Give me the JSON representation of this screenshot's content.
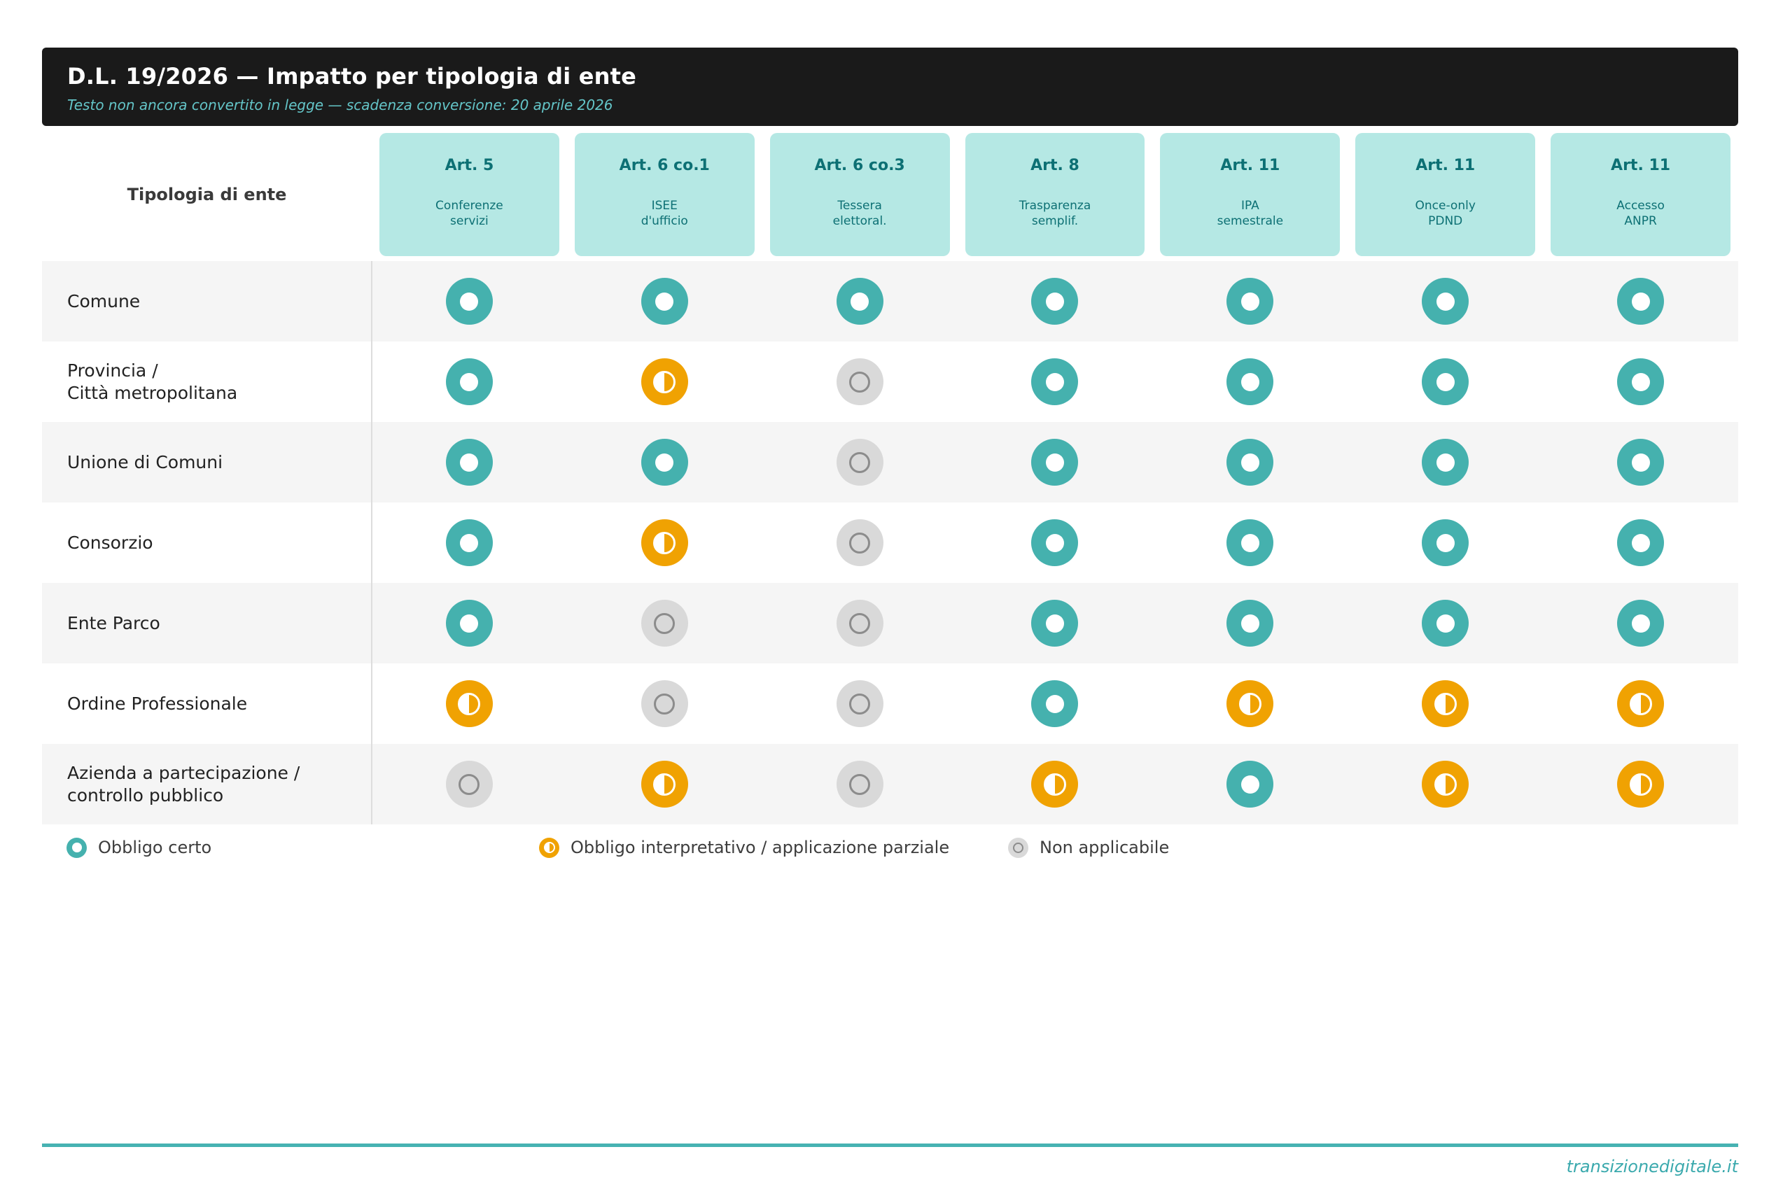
{
  "header": {
    "title": "D.L. 19/2026 — Impatto per tipologia di ente",
    "subtitle": "Testo non ancora convertito in legge — scadenza conversione: 20 aprile 2026"
  },
  "table": {
    "row_header": "Tipologia di ente",
    "columns": [
      {
        "art": "Art. 5",
        "sub": "Conferenze\nservizi"
      },
      {
        "art": "Art. 6 co.1",
        "sub": "ISEE\nd'ufficio"
      },
      {
        "art": "Art. 6 co.3",
        "sub": "Tessera\nelettoral."
      },
      {
        "art": "Art. 8",
        "sub": "Trasparenza\nsemplif."
      },
      {
        "art": "Art. 11",
        "sub": "IPA\nsemestrale"
      },
      {
        "art": "Art. 11",
        "sub": "Once-only\nPDND"
      },
      {
        "art": "Art. 11",
        "sub": "Accesso\nANPR"
      }
    ],
    "rows": [
      {
        "label": "Comune",
        "values": [
          "full",
          "full",
          "full",
          "full",
          "full",
          "full",
          "full"
        ]
      },
      {
        "label": "Provincia /\nCittà metropolitana",
        "values": [
          "full",
          "partial",
          "none",
          "full",
          "full",
          "full",
          "full"
        ]
      },
      {
        "label": "Unione di Comuni",
        "values": [
          "full",
          "full",
          "none",
          "full",
          "full",
          "full",
          "full"
        ]
      },
      {
        "label": "Consorzio",
        "values": [
          "full",
          "partial",
          "none",
          "full",
          "full",
          "full",
          "full"
        ]
      },
      {
        "label": "Ente Parco",
        "values": [
          "full",
          "none",
          "none",
          "full",
          "full",
          "full",
          "full"
        ]
      },
      {
        "label": "Ordine Professionale",
        "values": [
          "partial",
          "none",
          "none",
          "full",
          "partial",
          "partial",
          "partial"
        ]
      },
      {
        "label": "Azienda a partecipazione /\ncontrollo pubblico",
        "values": [
          "none",
          "partial",
          "none",
          "partial",
          "full",
          "partial",
          "partial"
        ]
      }
    ]
  },
  "legend": {
    "items": [
      {
        "type": "full",
        "label": "Obbligo certo"
      },
      {
        "type": "partial",
        "label": "Obbligo interpretativo / applicazione parziale"
      },
      {
        "type": "none",
        "label": "Non applicabile"
      }
    ]
  },
  "footer": {
    "credit": "transizionedigitale.it"
  },
  "colors": {
    "status_full_teal": "#45b1ae",
    "status_partial_orange": "#f0a202",
    "status_none_gray": "#d9d9d9",
    "status_none_ring": "#8c8c8c",
    "banner_bg": "#1a1a1a",
    "banner_subtitle": "#64c5c8",
    "column_header_bg": "#b5e8e4",
    "column_header_text": "#0d7074",
    "row_stripe": "#f5f5f5",
    "footer_rule": "#47b2b2",
    "footer_text": "#3aa9ad"
  },
  "chart_data": {
    "type": "heatmap",
    "title": "D.L. 19/2026 — Impatto per tipologia di ente",
    "subtitle": "Testo non ancora convertito in legge — scadenza conversione: 20 aprile 2026",
    "x_categories": [
      "Art. 5 — Conferenze servizi",
      "Art. 6 co.1 — ISEE d'ufficio",
      "Art. 6 co.3 — Tessera elettoral.",
      "Art. 8 — Trasparenza semplif.",
      "Art. 11 — IPA semestrale",
      "Art. 11 — Once-only PDND",
      "Art. 11 — Accesso ANPR"
    ],
    "y_categories": [
      "Comune",
      "Provincia / Città metropolitana",
      "Unione di Comuni",
      "Consorzio",
      "Ente Parco",
      "Ordine Professionale",
      "Azienda a partecipazione / controllo pubblico"
    ],
    "values": [
      [
        "full",
        "full",
        "full",
        "full",
        "full",
        "full",
        "full"
      ],
      [
        "full",
        "partial",
        "none",
        "full",
        "full",
        "full",
        "full"
      ],
      [
        "full",
        "full",
        "none",
        "full",
        "full",
        "full",
        "full"
      ],
      [
        "full",
        "partial",
        "none",
        "full",
        "full",
        "full",
        "full"
      ],
      [
        "full",
        "none",
        "none",
        "full",
        "full",
        "full",
        "full"
      ],
      [
        "partial",
        "none",
        "none",
        "full",
        "partial",
        "partial",
        "partial"
      ],
      [
        "none",
        "partial",
        "none",
        "partial",
        "full",
        "partial",
        "partial"
      ]
    ],
    "value_legend": {
      "full": "Obbligo certo",
      "partial": "Obbligo interpretativo / applicazione parziale",
      "none": "Non applicabile"
    },
    "legend_position": "bottom",
    "grid": false
  }
}
